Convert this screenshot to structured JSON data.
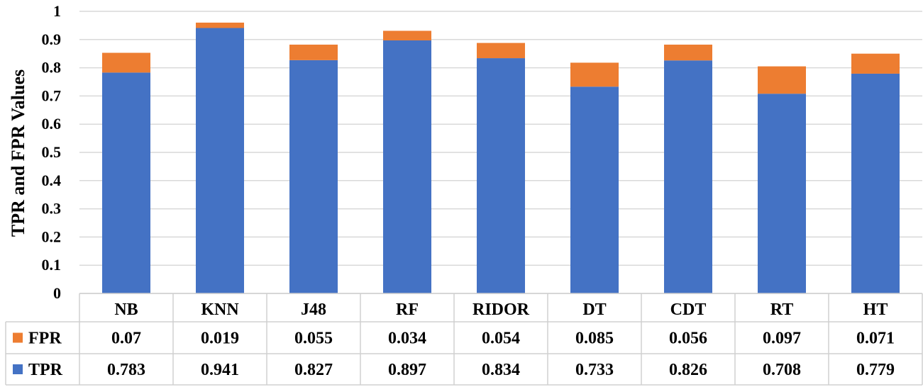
{
  "chart_data": {
    "type": "bar",
    "stacked": true,
    "title": "",
    "xlabel": "",
    "ylabel": "TPR and FPR Values",
    "ylim": [
      0,
      1
    ],
    "yticks": [
      "0",
      "0.1",
      "0.2",
      "0.3",
      "0.4",
      "0.5",
      "0.6",
      "0.7",
      "0.8",
      "0.9",
      "1"
    ],
    "categories": [
      "NB",
      "KNN",
      "J48",
      "RF",
      "RIDOR",
      "DT",
      "CDT",
      "RT",
      "HT"
    ],
    "series": [
      {
        "name": "TPR",
        "color": "#4472c4",
        "values": [
          0.783,
          0.941,
          0.827,
          0.897,
          0.834,
          0.733,
          0.826,
          0.708,
          0.779
        ],
        "labels": [
          "0.783",
          "0.941",
          "0.827",
          "0.897",
          "0.834",
          "0.733",
          "0.826",
          "0.708",
          "0.779"
        ]
      },
      {
        "name": "FPR",
        "color": "#ed7d31",
        "values": [
          0.07,
          0.019,
          0.055,
          0.034,
          0.054,
          0.085,
          0.056,
          0.097,
          0.071
        ],
        "labels": [
          "0.07",
          "0.019",
          "0.055",
          "0.034",
          "0.054",
          "0.085",
          "0.056",
          "0.097",
          "0.071"
        ]
      }
    ],
    "data_table": true,
    "table_row_order": [
      "FPR",
      "TPR"
    ],
    "grid": true
  }
}
